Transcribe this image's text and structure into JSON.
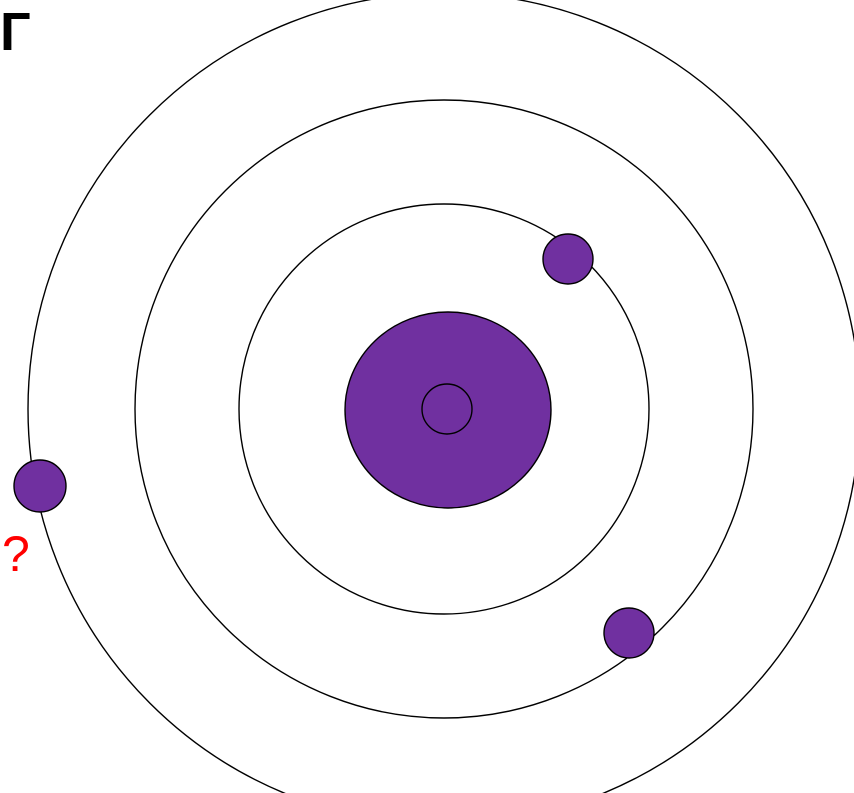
{
  "corner_text": "Г",
  "question_mark": "?",
  "colors": {
    "particle_fill": "#7030A0",
    "outline": "#000000",
    "question_mark": "#FF0000",
    "background": "#FFFFFF"
  },
  "diagram": {
    "orbit_count": 3,
    "outer_electron_count": 1,
    "middle_electron_count": 1,
    "inner_electron_count": 1
  }
}
